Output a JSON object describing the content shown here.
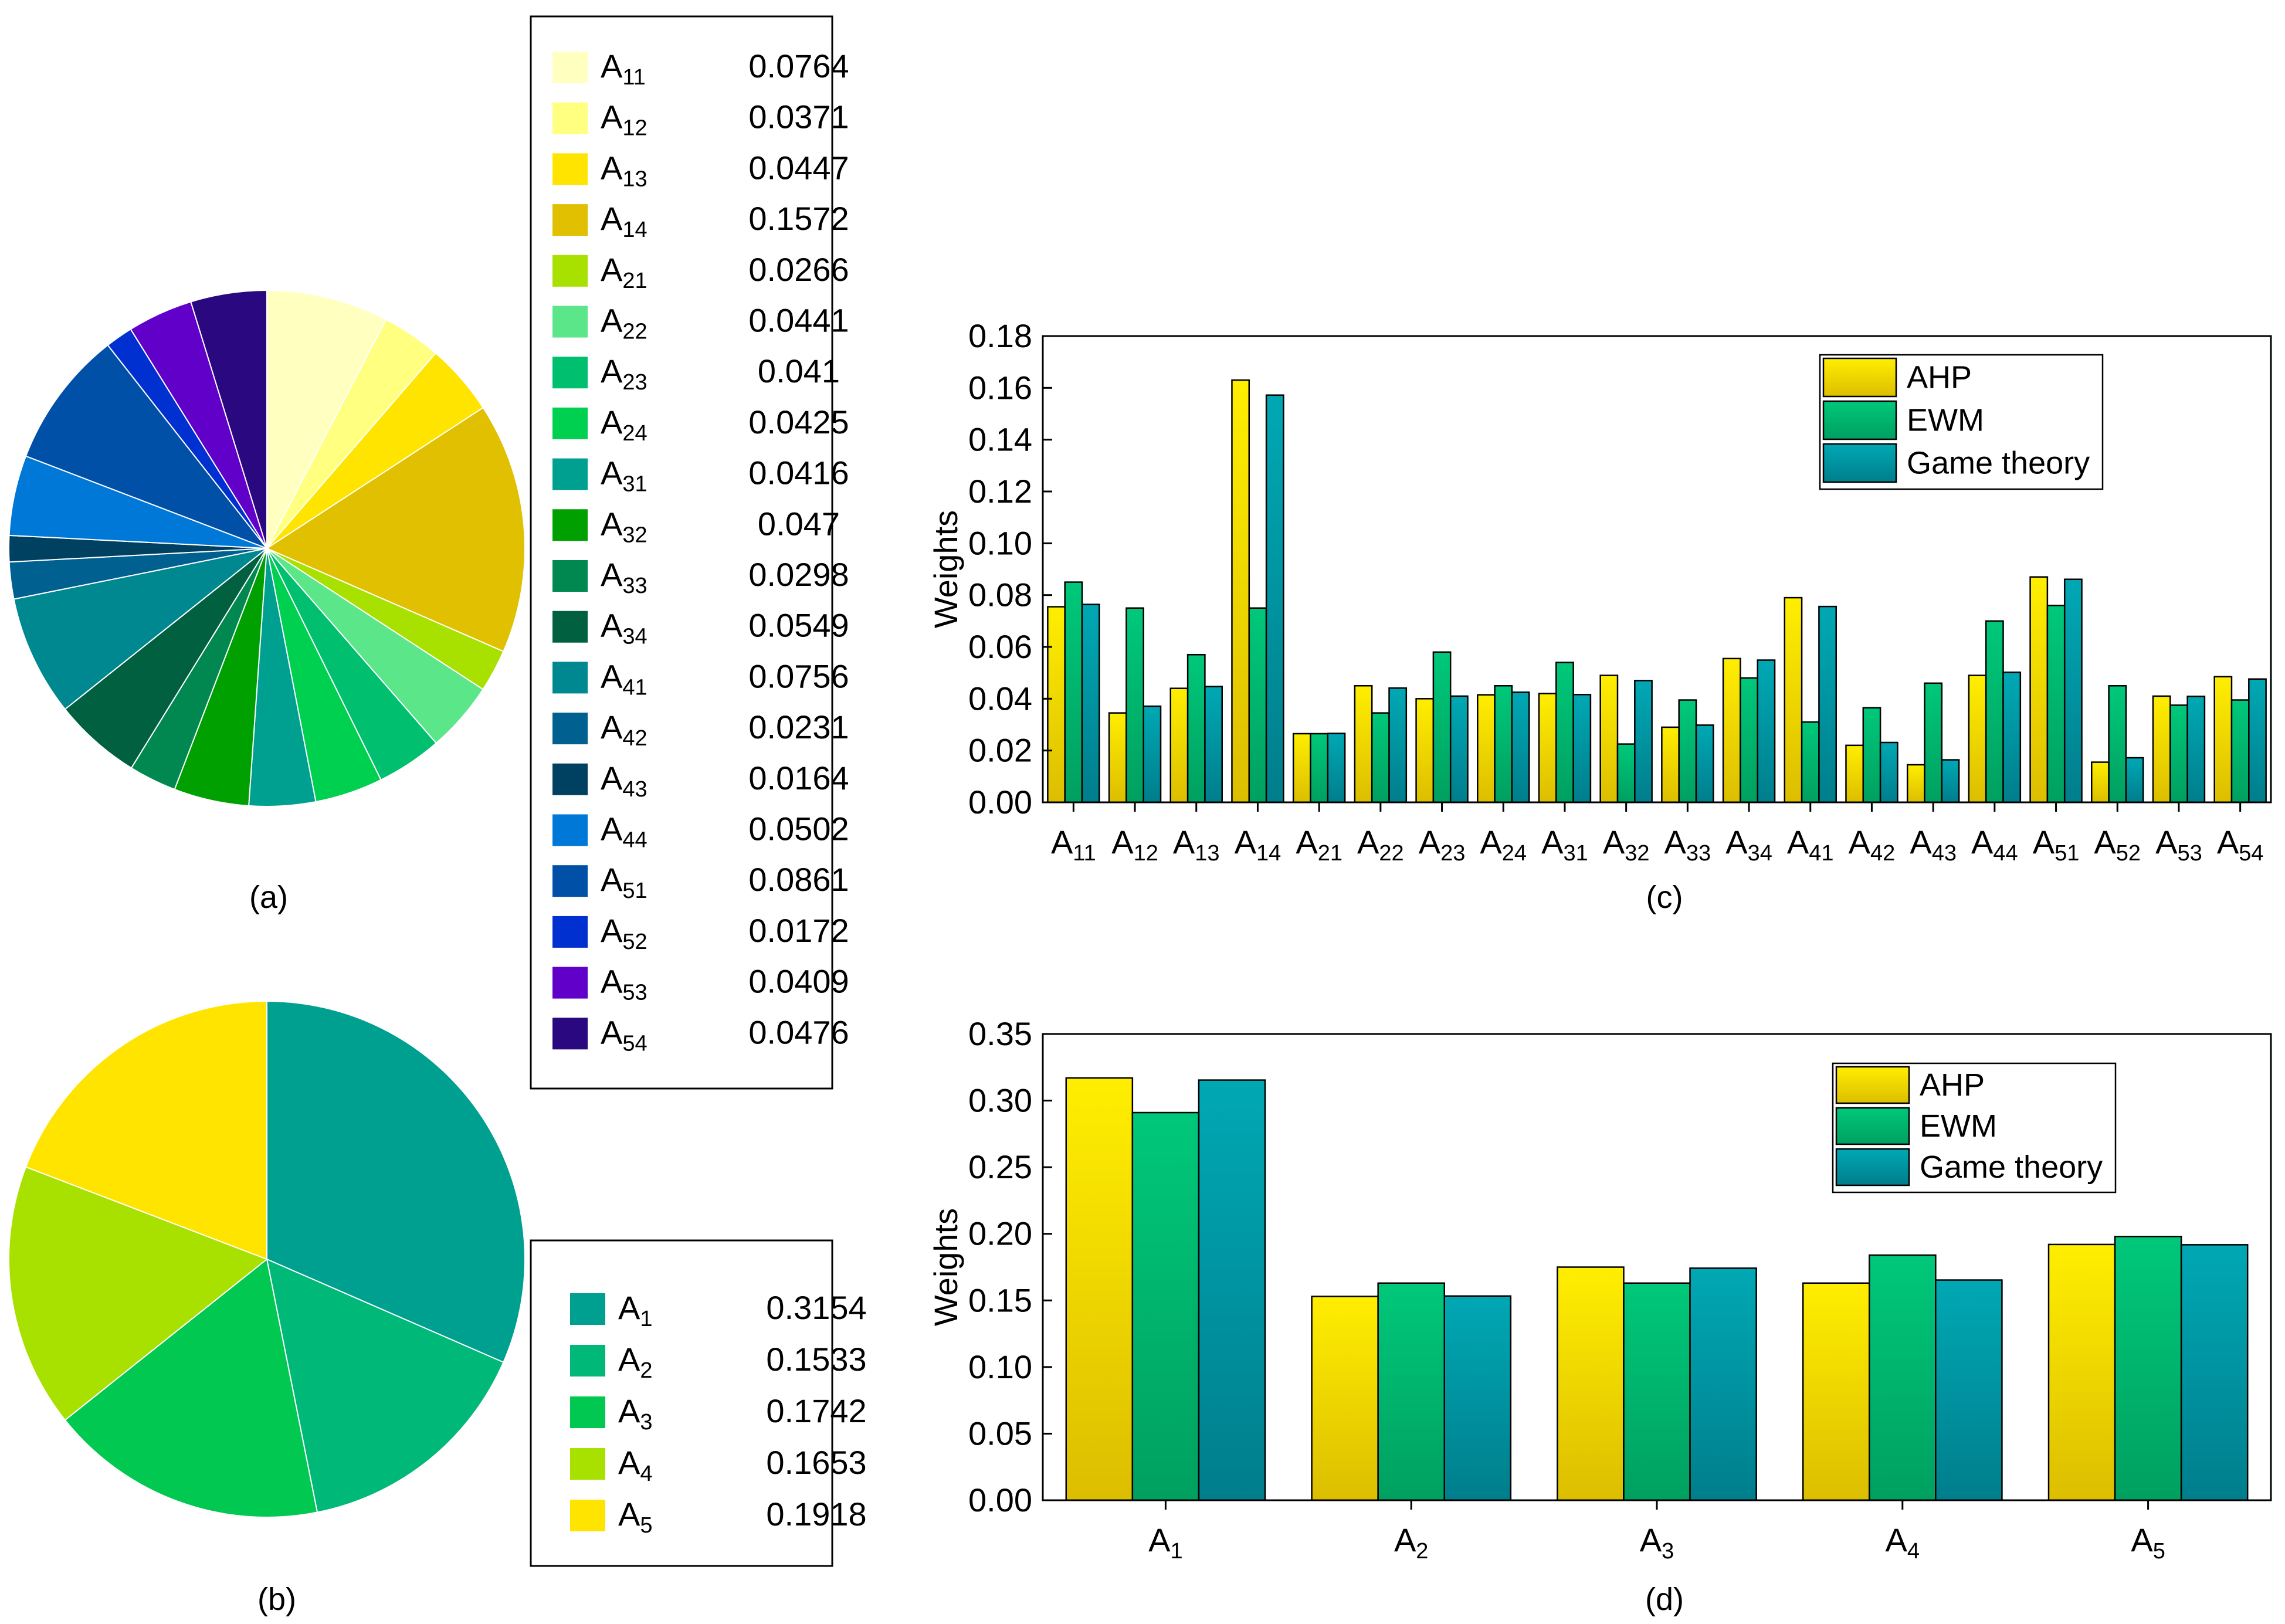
{
  "chart_data": [
    {
      "panel": "(a)",
      "type": "pie",
      "labels": [
        {
          "base": "A",
          "sub": "11"
        },
        {
          "base": "A",
          "sub": "12"
        },
        {
          "base": "A",
          "sub": "13"
        },
        {
          "base": "A",
          "sub": "14"
        },
        {
          "base": "A",
          "sub": "21"
        },
        {
          "base": "A",
          "sub": "22"
        },
        {
          "base": "A",
          "sub": "23"
        },
        {
          "base": "A",
          "sub": "24"
        },
        {
          "base": "A",
          "sub": "31"
        },
        {
          "base": "A",
          "sub": "32"
        },
        {
          "base": "A",
          "sub": "33"
        },
        {
          "base": "A",
          "sub": "34"
        },
        {
          "base": "A",
          "sub": "41"
        },
        {
          "base": "A",
          "sub": "42"
        },
        {
          "base": "A",
          "sub": "43"
        },
        {
          "base": "A",
          "sub": "44"
        },
        {
          "base": "A",
          "sub": "51"
        },
        {
          "base": "A",
          "sub": "52"
        },
        {
          "base": "A",
          "sub": "53"
        },
        {
          "base": "A",
          "sub": "54"
        }
      ],
      "values": [
        "0.0764",
        "0.0371",
        "0.0447",
        "0.1572",
        "0.0266",
        "0.0441",
        "0.041",
        "0.0425",
        "0.0416",
        "0.047",
        "0.0298",
        "0.0549",
        "0.0756",
        "0.0231",
        "0.0164",
        "0.0502",
        "0.0861",
        "0.0172",
        "0.0409",
        "0.0476"
      ],
      "colors": [
        "#FFFFC0",
        "#FFFF80",
        "#FFE400",
        "#E0C000",
        "#A8E000",
        "#5CE68A",
        "#00C070",
        "#00D050",
        "#00A090",
        "#00A000",
        "#008850",
        "#006040",
        "#008890",
        "#006090",
        "#004060",
        "#0078D8",
        "#0050A8",
        "#0030D0",
        "#6000C8",
        "#2A0880"
      ]
    },
    {
      "panel": "(b)",
      "type": "pie",
      "labels": [
        {
          "base": "A",
          "sub": "1"
        },
        {
          "base": "A",
          "sub": "2"
        },
        {
          "base": "A",
          "sub": "3"
        },
        {
          "base": "A",
          "sub": "4"
        },
        {
          "base": "A",
          "sub": "5"
        }
      ],
      "values": [
        "0.3154",
        "0.1533",
        "0.1742",
        "0.1653",
        "0.1918"
      ],
      "colors": [
        "#00A090",
        "#00B878",
        "#00C850",
        "#A8E000",
        "#FFE400"
      ]
    },
    {
      "panel": "(c)",
      "type": "bar",
      "categories": [
        {
          "base": "A",
          "sub": "11"
        },
        {
          "base": "A",
          "sub": "12"
        },
        {
          "base": "A",
          "sub": "13"
        },
        {
          "base": "A",
          "sub": "14"
        },
        {
          "base": "A",
          "sub": "21"
        },
        {
          "base": "A",
          "sub": "22"
        },
        {
          "base": "A",
          "sub": "23"
        },
        {
          "base": "A",
          "sub": "24"
        },
        {
          "base": "A",
          "sub": "31"
        },
        {
          "base": "A",
          "sub": "32"
        },
        {
          "base": "A",
          "sub": "33"
        },
        {
          "base": "A",
          "sub": "34"
        },
        {
          "base": "A",
          "sub": "41"
        },
        {
          "base": "A",
          "sub": "42"
        },
        {
          "base": "A",
          "sub": "43"
        },
        {
          "base": "A",
          "sub": "44"
        },
        {
          "base": "A",
          "sub": "51"
        },
        {
          "base": "A",
          "sub": "52"
        },
        {
          "base": "A",
          "sub": "53"
        },
        {
          "base": "A",
          "sub": "54"
        }
      ],
      "series": [
        {
          "name": "AHP",
          "values": [
            0.0755,
            0.0345,
            0.044,
            0.163,
            0.0265,
            0.045,
            0.04,
            0.0415,
            0.042,
            0.049,
            0.029,
            0.0555,
            0.079,
            0.022,
            0.0145,
            0.049,
            0.087,
            0.0155,
            0.041,
            0.0485
          ]
        },
        {
          "name": "EWM",
          "values": [
            0.085,
            0.075,
            0.057,
            0.075,
            0.0265,
            0.0345,
            0.058,
            0.045,
            0.054,
            0.0225,
            0.0395,
            0.048,
            0.031,
            0.0365,
            0.046,
            0.07,
            0.076,
            0.045,
            0.0375,
            0.0395
          ]
        },
        {
          "name": "Game theory",
          "values": [
            0.0764,
            0.0371,
            0.0447,
            0.1572,
            0.0266,
            0.0441,
            0.041,
            0.0425,
            0.0416,
            0.047,
            0.0298,
            0.0549,
            0.0756,
            0.0231,
            0.0164,
            0.0502,
            0.0861,
            0.0172,
            0.0409,
            0.0476
          ]
        }
      ],
      "ylabel": "Weights",
      "ylim": [
        0,
        0.18
      ],
      "yticks": [
        "0.00",
        "0.02",
        "0.04",
        "0.06",
        "0.08",
        "0.10",
        "0.12",
        "0.14",
        "0.16",
        "0.18"
      ],
      "legend_position": "top-right"
    },
    {
      "panel": "(d)",
      "type": "bar",
      "categories": [
        {
          "base": "A",
          "sub": "1"
        },
        {
          "base": "A",
          "sub": "2"
        },
        {
          "base": "A",
          "sub": "3"
        },
        {
          "base": "A",
          "sub": "4"
        },
        {
          "base": "A",
          "sub": "5"
        }
      ],
      "series": [
        {
          "name": "AHP",
          "values": [
            0.317,
            0.153,
            0.175,
            0.163,
            0.192
          ]
        },
        {
          "name": "EWM",
          "values": [
            0.291,
            0.163,
            0.163,
            0.184,
            0.198
          ]
        },
        {
          "name": "Game theory",
          "values": [
            0.3154,
            0.1533,
            0.1742,
            0.1653,
            0.1918
          ]
        }
      ],
      "ylabel": "Weights",
      "ylim": [
        0,
        0.35
      ],
      "yticks": [
        "0.00",
        "0.05",
        "0.10",
        "0.15",
        "0.20",
        "0.25",
        "0.30",
        "0.35"
      ],
      "legend_position": "top-right"
    }
  ],
  "series_gradients": {
    "AHP": [
      "#FFEE00",
      "#DCBE00"
    ],
    "EWM": [
      "#00C87A",
      "#00A060"
    ],
    "Game theory": [
      "#00A8B4",
      "#007E8C"
    ]
  }
}
